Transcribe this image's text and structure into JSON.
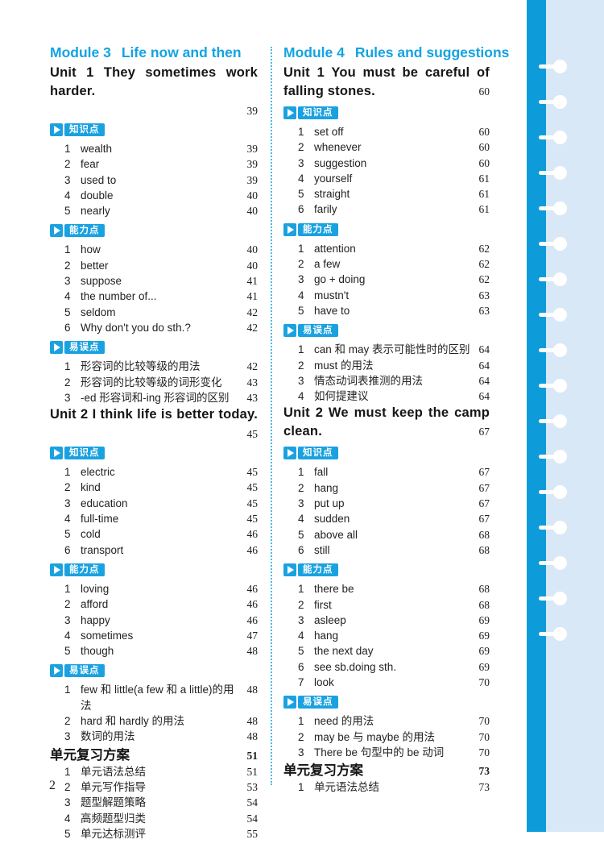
{
  "page_number": "2",
  "colors": {
    "heading_cyan": "#14a3e2",
    "badge_blue": "#1aa2e0",
    "side_bar_blue": "#0d9cd9",
    "side_panel_blue": "#d9e8f6",
    "divider_dot_blue": "#4cb8e8"
  },
  "columns": [
    {
      "module": {
        "label": "Module 3",
        "title": "Life now and then"
      },
      "blocks": [
        {
          "type": "unit",
          "line1": "Unit 1 They sometimes work",
          "line2": "harder.",
          "page": "39",
          "page_inline": false
        },
        {
          "type": "badge",
          "label": "知识点"
        },
        {
          "type": "items",
          "items": [
            {
              "n": "1",
              "label": "wealth",
              "page": "39"
            },
            {
              "n": "2",
              "label": "fear",
              "page": "39"
            },
            {
              "n": "3",
              "label": "used to",
              "page": "39"
            },
            {
              "n": "4",
              "label": "double",
              "page": "40"
            },
            {
              "n": "5",
              "label": "nearly",
              "page": "40"
            }
          ]
        },
        {
          "type": "badge",
          "label": "能力点"
        },
        {
          "type": "items",
          "items": [
            {
              "n": "1",
              "label": "how",
              "page": "40"
            },
            {
              "n": "2",
              "label": "better",
              "page": "40"
            },
            {
              "n": "3",
              "label": "suppose",
              "page": "41"
            },
            {
              "n": "4",
              "label": "the number of...",
              "page": "41"
            },
            {
              "n": "5",
              "label": "seldom",
              "page": "42"
            },
            {
              "n": "6",
              "label": "Why don't you do sth.?",
              "page": "42"
            }
          ]
        },
        {
          "type": "badge",
          "label": "易误点"
        },
        {
          "type": "items",
          "items": [
            {
              "n": "1",
              "label": "形容词的比较等级的用法",
              "page": "42"
            },
            {
              "n": "2",
              "label": "形容词的比较等级的词形变化",
              "page": "43"
            },
            {
              "n": "3",
              "label": "-ed 形容词和-ing 形容词的区别",
              "page": "43"
            }
          ]
        },
        {
          "type": "unit",
          "line1": "Unit 2 I think life is better today.",
          "line2": null,
          "page": "45",
          "page_inline": false
        },
        {
          "type": "badge",
          "label": "知识点"
        },
        {
          "type": "items",
          "items": [
            {
              "n": "1",
              "label": "electric",
              "page": "45"
            },
            {
              "n": "2",
              "label": "kind",
              "page": "45"
            },
            {
              "n": "3",
              "label": "education",
              "page": "45"
            },
            {
              "n": "4",
              "label": "full-time",
              "page": "45"
            },
            {
              "n": "5",
              "label": "cold",
              "page": "46"
            },
            {
              "n": "6",
              "label": "transport",
              "page": "46"
            }
          ]
        },
        {
          "type": "badge",
          "label": "能力点"
        },
        {
          "type": "items",
          "items": [
            {
              "n": "1",
              "label": "loving",
              "page": "46"
            },
            {
              "n": "2",
              "label": "afford",
              "page": "46"
            },
            {
              "n": "3",
              "label": "happy",
              "page": "46"
            },
            {
              "n": "4",
              "label": "sometimes",
              "page": "47"
            },
            {
              "n": "5",
              "label": "though",
              "page": "48"
            }
          ]
        },
        {
          "type": "badge",
          "label": "易误点"
        },
        {
          "type": "items",
          "items": [
            {
              "n": "1",
              "label": "few 和 little(a few 和 a little)的用法",
              "page": "48"
            },
            {
              "n": "2",
              "label": "hard 和 hardly 的用法",
              "page": "48"
            },
            {
              "n": "3",
              "label": "数词的用法",
              "page": "48"
            }
          ]
        },
        {
          "type": "review",
          "label": "单元复习方案",
          "page": "51"
        },
        {
          "type": "items",
          "items": [
            {
              "n": "1",
              "label": "单元语法总结",
              "page": "51"
            },
            {
              "n": "2",
              "label": "单元写作指导",
              "page": "53"
            },
            {
              "n": "3",
              "label": "题型解题策略",
              "page": "54"
            },
            {
              "n": "4",
              "label": "高频题型归类",
              "page": "54"
            },
            {
              "n": "5",
              "label": "单元达标测评",
              "page": "55"
            }
          ]
        }
      ]
    },
    {
      "module": {
        "label": "Module 4",
        "title": "Rules and suggestions"
      },
      "blocks": [
        {
          "type": "unit",
          "line1": "Unit 1 You must be careful of",
          "line2": "falling stones.",
          "page": "60",
          "page_inline": true
        },
        {
          "type": "badge",
          "label": "知识点"
        },
        {
          "type": "items",
          "items": [
            {
              "n": "1",
              "label": "set off",
              "page": "60"
            },
            {
              "n": "2",
              "label": "whenever",
              "page": "60"
            },
            {
              "n": "3",
              "label": "suggestion",
              "page": "60"
            },
            {
              "n": "4",
              "label": "yourself",
              "page": "61"
            },
            {
              "n": "5",
              "label": "straight",
              "page": "61"
            },
            {
              "n": "6",
              "label": "farily",
              "page": "61"
            }
          ]
        },
        {
          "type": "badge",
          "label": "能力点"
        },
        {
          "type": "items",
          "items": [
            {
              "n": "1",
              "label": "attention",
              "page": "62"
            },
            {
              "n": "2",
              "label": "a few",
              "page": "62"
            },
            {
              "n": "3",
              "label": "go + doing",
              "page": "62"
            },
            {
              "n": "4",
              "label": "mustn't",
              "page": "63"
            },
            {
              "n": "5",
              "label": "have to",
              "page": "63"
            }
          ]
        },
        {
          "type": "badge",
          "label": "易误点"
        },
        {
          "type": "items",
          "items": [
            {
              "n": "1",
              "label": "can 和 may 表示可能性时的区别",
              "page": "64"
            },
            {
              "n": "2",
              "label": "must 的用法",
              "page": "64"
            },
            {
              "n": "3",
              "label": "情态动词表推测的用法",
              "page": "64"
            },
            {
              "n": "4",
              "label": "如何提建议",
              "page": "64"
            }
          ]
        },
        {
          "type": "unit",
          "line1": "Unit 2 We must keep the camp",
          "line2": "clean.",
          "page": "67",
          "page_inline": true
        },
        {
          "type": "badge",
          "label": "知识点"
        },
        {
          "type": "items",
          "items": [
            {
              "n": "1",
              "label": "fall",
              "page": "67"
            },
            {
              "n": "2",
              "label": "hang",
              "page": "67"
            },
            {
              "n": "3",
              "label": "put up",
              "page": "67"
            },
            {
              "n": "4",
              "label": "sudden",
              "page": "67"
            },
            {
              "n": "5",
              "label": "above all",
              "page": "68"
            },
            {
              "n": "6",
              "label": "still",
              "page": "68"
            }
          ]
        },
        {
          "type": "badge",
          "label": "能力点"
        },
        {
          "type": "items",
          "items": [
            {
              "n": "1",
              "label": "there be",
              "page": "68"
            },
            {
              "n": "2",
              "label": "first",
              "page": "68"
            },
            {
              "n": "3",
              "label": "asleep",
              "page": "69"
            },
            {
              "n": "4",
              "label": "hang",
              "page": "69"
            },
            {
              "n": "5",
              "label": "the next day",
              "page": "69"
            },
            {
              "n": "6",
              "label": "see sb.doing sth.",
              "page": "69"
            },
            {
              "n": "7",
              "label": "look",
              "page": "70"
            }
          ]
        },
        {
          "type": "badge",
          "label": "易误点"
        },
        {
          "type": "items",
          "items": [
            {
              "n": "1",
              "label": "need 的用法",
              "page": "70"
            },
            {
              "n": "2",
              "label": "may be 与 maybe 的用法",
              "page": "70"
            },
            {
              "n": "3",
              "label": "There be 句型中的 be 动词",
              "page": "70"
            }
          ]
        },
        {
          "type": "review",
          "label": "单元复习方案",
          "page": "73"
        },
        {
          "type": "items",
          "items": [
            {
              "n": "1",
              "label": "单元语法总结",
              "page": "73"
            }
          ]
        }
      ]
    }
  ]
}
